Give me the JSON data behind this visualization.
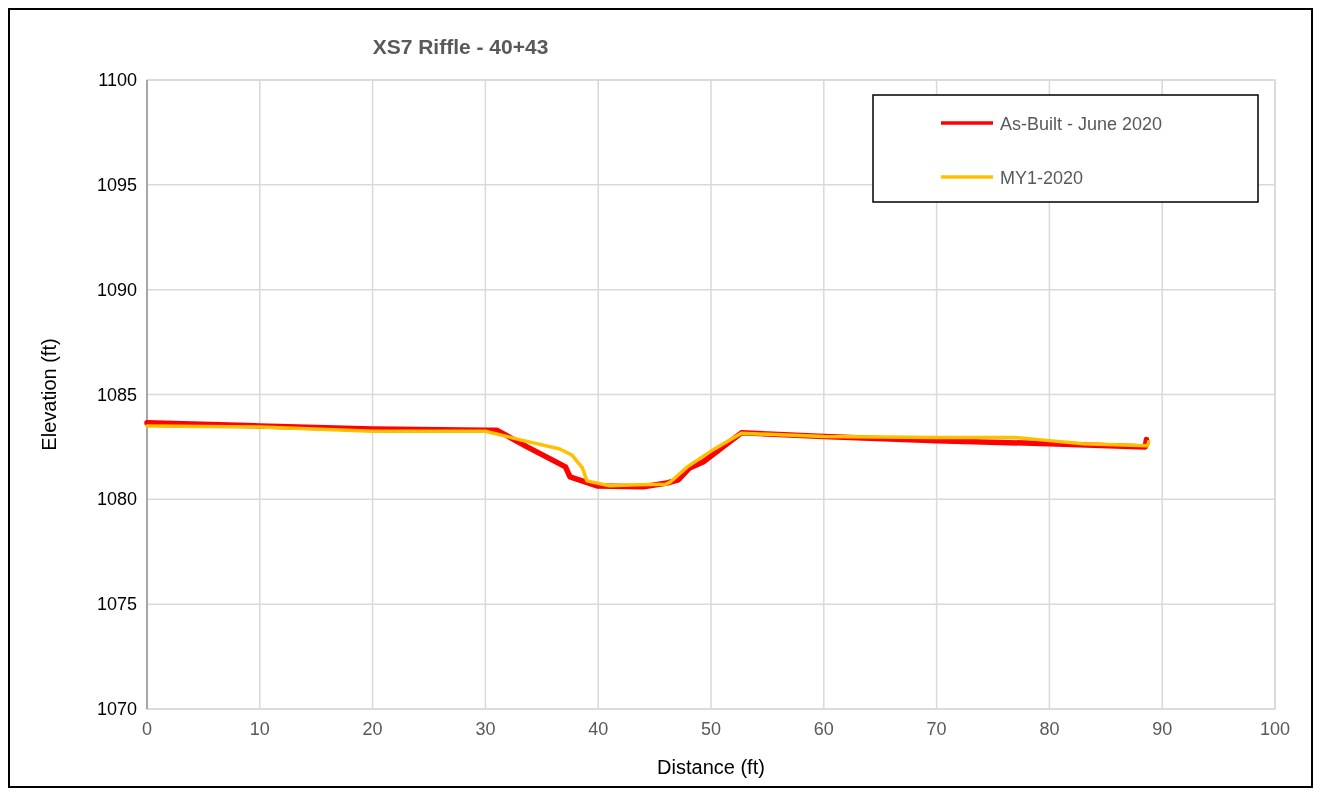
{
  "chart_data": {
    "type": "line",
    "title": "XS7 Riffle - 40+43",
    "xlabel": "Distance (ft)",
    "ylabel": "Elevation (ft)",
    "xlim": [
      0,
      100
    ],
    "xticks": [
      0,
      10,
      20,
      30,
      40,
      50,
      60,
      70,
      80,
      90,
      100
    ],
    "ylim": [
      1070,
      1100
    ],
    "yticks": [
      1070,
      1075,
      1080,
      1085,
      1090,
      1095,
      1100
    ],
    "grid": true,
    "legend": "top right",
    "marker": "none",
    "line_style": "solid",
    "series": [
      {
        "name": "As-Built - June 2020",
        "color": "#ff0000",
        "x": [
          0,
          10,
          20,
          30,
          31,
          33.7,
          37.1,
          37.5,
          39.9,
          44,
          46.1,
          47.1,
          48.1,
          49.3,
          52.7,
          60,
          70,
          80,
          88.5,
          88.6
        ],
        "values": [
          1083.65,
          1083.5,
          1083.35,
          1083.3,
          1083.3,
          1082.5,
          1081.55,
          1081.07,
          1080.64,
          1080.6,
          1080.78,
          1080.93,
          1081.5,
          1081.78,
          1083.17,
          1083.0,
          1082.8,
          1082.65,
          1082.5,
          1082.85
        ]
      },
      {
        "name": "MY1-2020",
        "color": "#ffc000",
        "x": [
          0,
          10,
          20,
          30,
          33,
          36.6,
          37.7,
          38.6,
          39,
          41,
          43.5,
          46,
          46.4,
          47.9,
          50,
          52.7,
          60,
          70,
          77,
          80,
          83,
          88.7,
          88.8
        ],
        "values": [
          1083.5,
          1083.45,
          1083.25,
          1083.25,
          1082.85,
          1082.4,
          1082.1,
          1081.5,
          1080.88,
          1080.65,
          1080.7,
          1080.72,
          1080.83,
          1081.55,
          1082.3,
          1083.15,
          1083.0,
          1082.95,
          1082.95,
          1082.8,
          1082.65,
          1082.55,
          1082.75
        ]
      }
    ]
  }
}
